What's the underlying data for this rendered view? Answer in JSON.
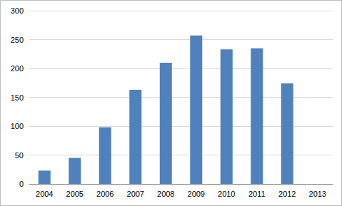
{
  "chart_data": {
    "type": "bar",
    "categories": [
      "2004",
      "2005",
      "2006",
      "2007",
      "2008",
      "2009",
      "2010",
      "2011",
      "2012",
      "2013"
    ],
    "values": [
      23,
      45,
      98,
      163,
      210,
      257,
      233,
      235,
      174,
      null
    ],
    "color": "#4f81bd",
    "ylim": [
      0,
      300
    ],
    "yticks": [
      0,
      50,
      100,
      150,
      200,
      250,
      300
    ],
    "grid": true
  }
}
